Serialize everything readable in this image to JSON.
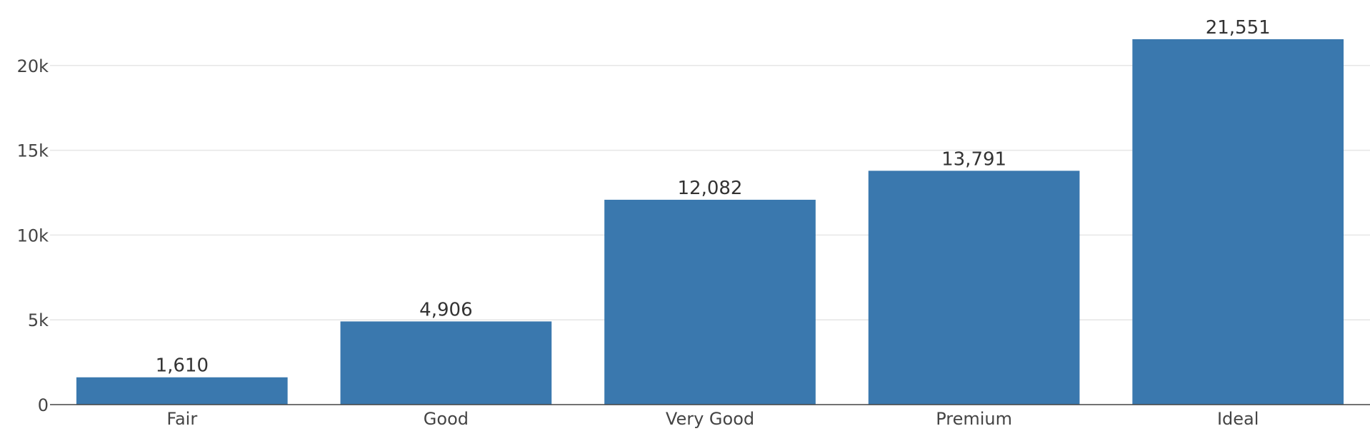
{
  "chart_data": {
    "type": "bar",
    "categories": [
      "Fair",
      "Good",
      "Very Good",
      "Premium",
      "Ideal"
    ],
    "values": [
      1610,
      4906,
      12082,
      13791,
      21551
    ],
    "value_labels": [
      "1,610",
      "4,906",
      "12,082",
      "13,791",
      "21,551"
    ],
    "title": "",
    "xlabel": "",
    "ylabel": "",
    "ylim": [
      0,
      22685
    ],
    "yticks": [
      0,
      5000,
      10000,
      15000,
      20000
    ],
    "ytick_labels": [
      "0",
      "5k",
      "10k",
      "15k",
      "20k"
    ],
    "grid": true,
    "bar_color": "#3a78ae"
  }
}
